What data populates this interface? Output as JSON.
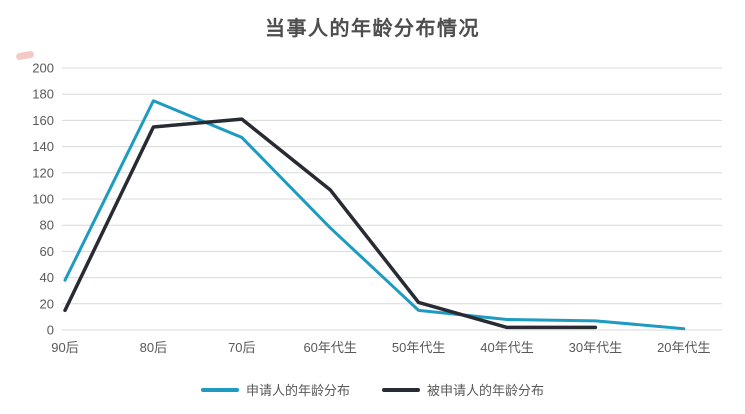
{
  "title": "当事人的年龄分布情况",
  "chart_data": {
    "type": "line",
    "title": "当事人的年龄分布情况",
    "categories": [
      "90后",
      "80后",
      "70后",
      "60年代生",
      "50年代生",
      "40年代生",
      "30年代生",
      "20年代生"
    ],
    "series": [
      {
        "name": "申请人的年龄分布",
        "color": "#1E9BC0",
        "width": 3,
        "values": [
          38,
          175,
          147,
          78,
          15,
          8,
          7,
          1
        ]
      },
      {
        "name": "被申请人的年龄分布",
        "color": "#292B33",
        "width": 3.5,
        "values": [
          15,
          155,
          161,
          107,
          21,
          2,
          2,
          null
        ]
      }
    ],
    "xlabel": "",
    "ylabel": "",
    "ylim": [
      0,
      200
    ],
    "ytick_step": 20,
    "yticks": [
      0,
      20,
      40,
      60,
      80,
      100,
      120,
      140,
      160,
      180,
      200
    ],
    "grid": true,
    "grid_color": "#d9d9d9",
    "axis_color": "#595959",
    "legend_position": "bottom",
    "title_color": "#4d4d4d"
  }
}
